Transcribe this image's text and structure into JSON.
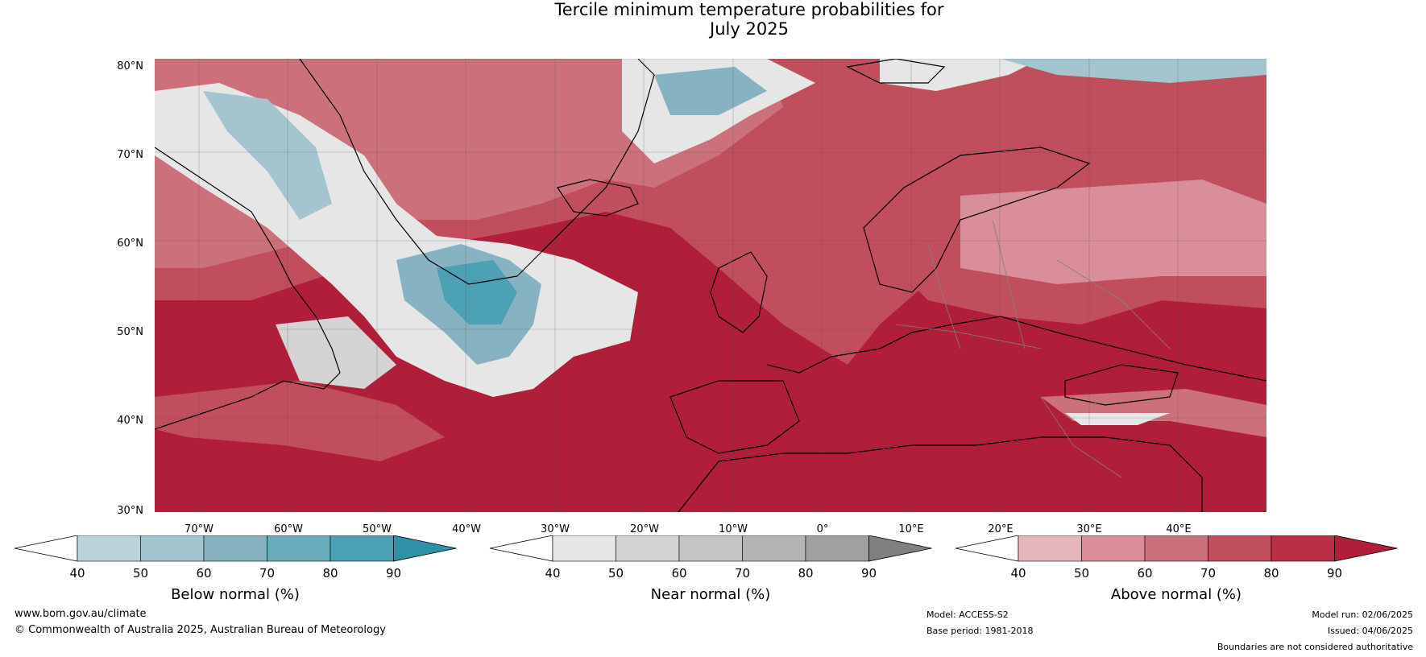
{
  "title": {
    "line1": "Tercile minimum temperature probabilities for",
    "line2": "July 2025"
  },
  "map": {
    "lat_labels": [
      "80°N",
      "70°N",
      "60°N",
      "50°N",
      "40°N",
      "30°N"
    ],
    "lon_labels": [
      "70°W",
      "60°W",
      "50°W",
      "40°W",
      "30°W",
      "20°W",
      "10°W",
      "0°",
      "10°E",
      "20°E",
      "30°E",
      "40°E"
    ],
    "colors": {
      "land_outline": "#000000",
      "border_outline": "#808080",
      "grid": "#505050"
    }
  },
  "colorbars": [
    {
      "title": "Below normal (%)",
      "ticks": [
        "40",
        "50",
        "60",
        "70",
        "80",
        "90"
      ],
      "colors": [
        "#bcd3db",
        "#a4c5cf",
        "#87b2c2",
        "#6aabbb",
        "#4ca2b4",
        "#2e91a6"
      ]
    },
    {
      "title": "Near normal (%)",
      "ticks": [
        "40",
        "50",
        "60",
        "70",
        "80",
        "90"
      ],
      "colors": [
        "#e6e6e6",
        "#d4d4d4",
        "#c4c4c4",
        "#b4b5b4",
        "#a0a0a0",
        "#808080"
      ]
    },
    {
      "title": "Above normal (%)",
      "ticks": [
        "40",
        "50",
        "60",
        "70",
        "80",
        "90"
      ],
      "colors": [
        "#e4b5bd",
        "#d98e99",
        "#cc717c",
        "#c14e5d",
        "#b92f45",
        "#b01e3a"
      ]
    }
  ],
  "footer": {
    "url": "www.bom.gov.au/climate",
    "copyright": "© Commonwealth of Australia 2025, Australian Bureau of Meteorology",
    "model": "Model: ACCESS-S2",
    "base_period": "Base period: 1981-2018",
    "model_run": "Model run: 02/06/2025",
    "issued": "Issued: 04/06/2025",
    "disclaimer": "Boundaries are not considered authoritative"
  }
}
